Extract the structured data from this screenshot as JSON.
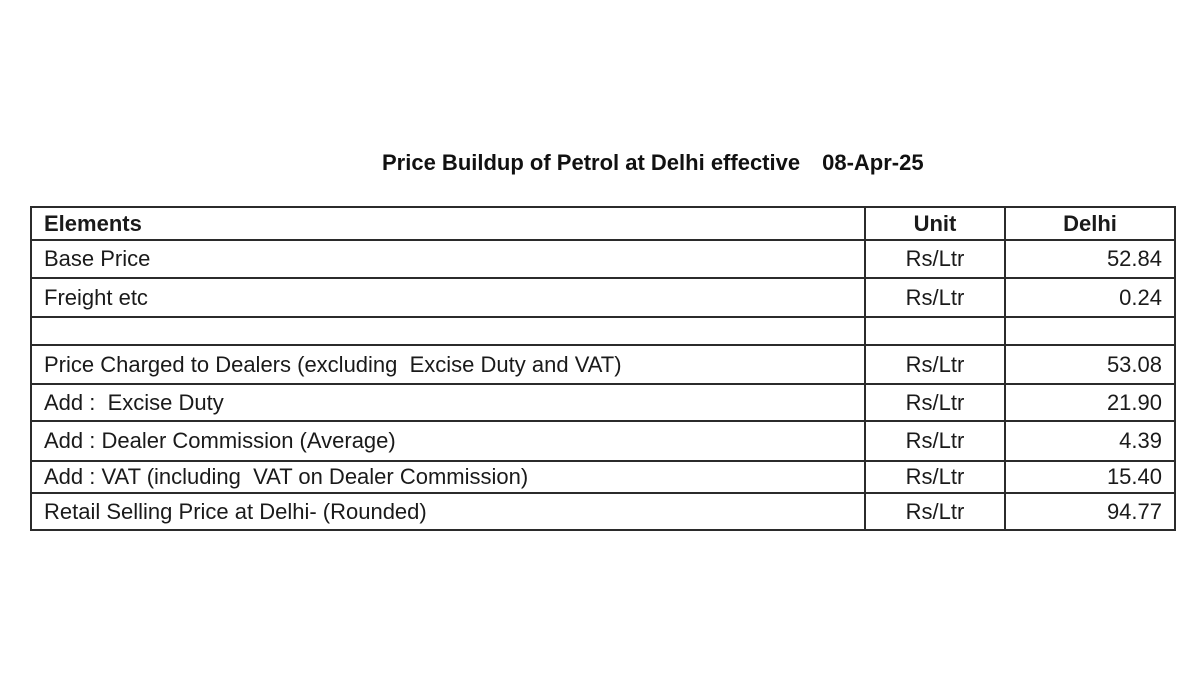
{
  "document": {
    "title": "Price Buildup of Petrol at Delhi effective",
    "effective_date": "08-Apr-25"
  },
  "table": {
    "headers": {
      "elements": "Elements",
      "unit": "Unit",
      "value": "Delhi"
    },
    "rows": [
      {
        "element": "Base Price",
        "unit": "Rs/Ltr",
        "value": "52.84"
      },
      {
        "element": "Freight etc",
        "unit": "Rs/Ltr",
        "value": "0.24"
      },
      {
        "element": "",
        "unit": "",
        "value": ""
      },
      {
        "element": "Price Charged to Dealers (excluding  Excise Duty and VAT)",
        "unit": "Rs/Ltr",
        "value": "53.08"
      },
      {
        "element": "Add :  Excise Duty",
        "unit": "Rs/Ltr",
        "value": "21.90"
      },
      {
        "element": "Add : Dealer Commission (Average)",
        "unit": "Rs/Ltr",
        "value": "4.39"
      },
      {
        "element": "Add : VAT (including  VAT on Dealer Commission)",
        "unit": "Rs/Ltr",
        "value": "15.40"
      },
      {
        "element": "Retail Selling Price at Delhi- (Rounded)",
        "unit": "Rs/Ltr",
        "value": "94.77"
      }
    ]
  }
}
